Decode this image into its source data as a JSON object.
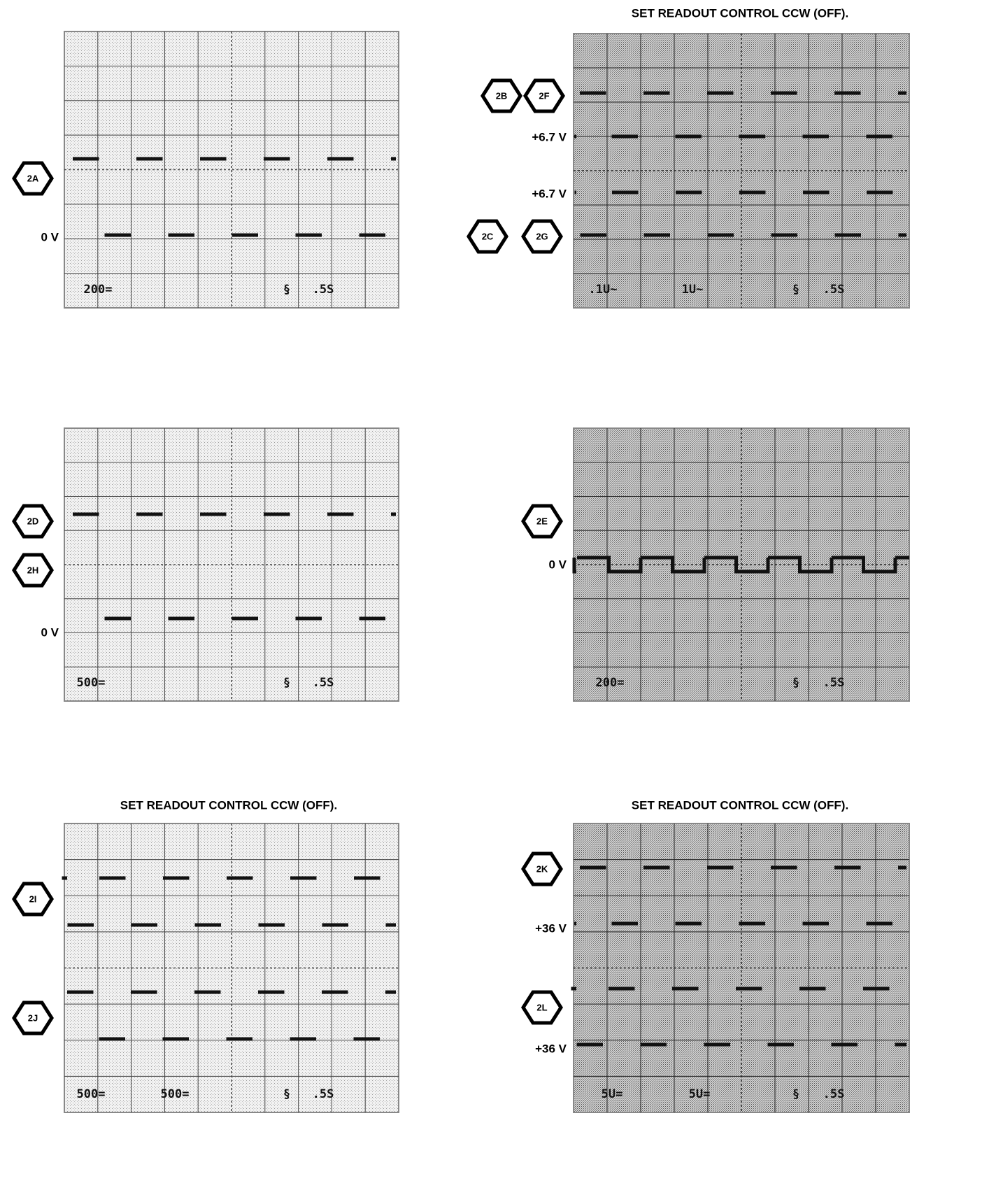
{
  "panels": [
    {
      "markers": [
        {
          "label": "2A"
        }
      ],
      "levels": [
        "0 V"
      ],
      "readouts": [
        "200=",
        "§",
        ".5S"
      ]
    },
    {
      "heading": "SET READOUT CONTROL CCW (OFF).",
      "markers": [
        {
          "label": "2B"
        },
        {
          "label": "2F"
        },
        {
          "label": "2C"
        },
        {
          "label": "2G"
        }
      ],
      "levels": [
        "+6.7 V",
        "+6.7 V"
      ],
      "readouts": [
        ".1U~",
        "1U~",
        "§",
        ".5S"
      ]
    },
    {
      "markers": [
        {
          "label": "2D"
        },
        {
          "label": "2H"
        }
      ],
      "levels": [
        "0 V"
      ],
      "readouts": [
        "500=",
        "§",
        ".5S"
      ]
    },
    {
      "markers": [
        {
          "label": "2E"
        }
      ],
      "levels": [
        "0 V"
      ],
      "readouts": [
        "200=",
        "§",
        ".5S"
      ]
    },
    {
      "heading": "SET READOUT CONTROL CCW (OFF).",
      "markers": [
        {
          "label": "2I"
        },
        {
          "label": "2J"
        }
      ],
      "levels": [],
      "readouts": [
        "500=",
        "500=",
        "§",
        ".5S"
      ]
    },
    {
      "heading": "SET READOUT CONTROL CCW (OFF).",
      "markers": [
        {
          "label": "2K"
        },
        {
          "label": "2L"
        }
      ],
      "levels": [
        "+36 V",
        "+36 V"
      ],
      "readouts": [
        "5U=",
        "5U=",
        "§",
        ".5S"
      ]
    }
  ]
}
